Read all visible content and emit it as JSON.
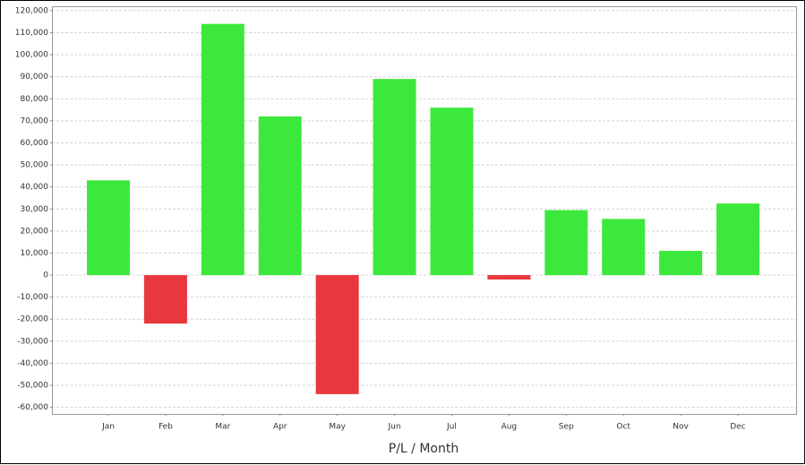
{
  "chart_data": {
    "type": "bar",
    "x_axis_label": "P/L / Month",
    "categories": [
      "Jan",
      "Feb",
      "Mar",
      "Apr",
      "May",
      "Jun",
      "Jul",
      "Aug",
      "Sep",
      "Oct",
      "Nov",
      "Dec"
    ],
    "values": [
      43000,
      -22000,
      114000,
      72000,
      -54000,
      89000,
      76000,
      -2000,
      29500,
      25500,
      11000,
      32500
    ],
    "positive_color": "#3de83d",
    "negative_color": "#e8383d",
    "ylim": [
      -63000,
      122000
    ],
    "yticks": [
      {
        "value": -60000,
        "label": "-60,000"
      },
      {
        "value": -50000,
        "label": "-50,000"
      },
      {
        "value": -40000,
        "label": "-40,000"
      },
      {
        "value": -30000,
        "label": "-30,000"
      },
      {
        "value": -20000,
        "label": "-20,000"
      },
      {
        "value": -10000,
        "label": "-10,000"
      },
      0,
      {
        "value": 10000,
        "label": "10,000"
      },
      {
        "value": 20000,
        "label": "20,000"
      },
      {
        "value": 30000,
        "label": "30,000"
      },
      {
        "value": 40000,
        "label": "40,000"
      },
      {
        "value": 50000,
        "label": "50,000"
      },
      {
        "value": 60000,
        "label": "60,000"
      },
      {
        "value": 70000,
        "label": "70,000"
      },
      {
        "value": 80000,
        "label": "80,000"
      },
      {
        "value": 90000,
        "label": "90,000"
      },
      {
        "value": 100000,
        "label": "100,000"
      },
      {
        "value": 110000,
        "label": "110,000"
      },
      {
        "value": 120000,
        "label": "120,000"
      }
    ],
    "grid": true
  }
}
